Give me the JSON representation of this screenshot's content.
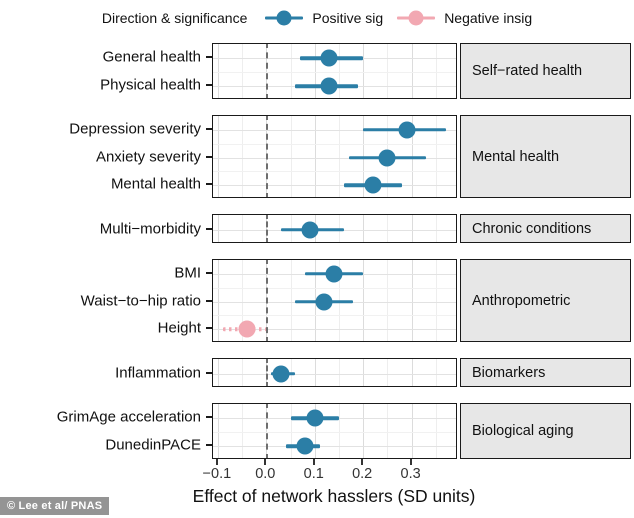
{
  "legend": {
    "title": "Direction & significance",
    "items": [
      {
        "label": "Positive sig",
        "color": "#2b7ea6",
        "ci_style": "solid"
      },
      {
        "label": "Negative insig",
        "color": "#f2a8b2",
        "ci_style": "dotted"
      }
    ]
  },
  "watermark": "© Lee et al/ PNAS",
  "colors": {
    "positive": "#2b7ea6",
    "negative_insig": "#f2a8b2",
    "strip_background": "#e7e7e7",
    "zero_line": "#6e6e6e",
    "panel_border": "#1a1a1a"
  },
  "chart_data": {
    "type": "forest",
    "title": "",
    "xlabel": "Effect of network hasslers (SD units)",
    "ylabel": "",
    "xlim": [
      -0.11,
      0.39
    ],
    "x_ticks": [
      -0.1,
      0.0,
      0.1,
      0.2,
      0.3
    ],
    "x_tick_labels": [
      "−0.1",
      "0.0",
      "0.1",
      "0.2",
      "0.3"
    ],
    "zero_line": 0.0,
    "grid": true,
    "legend_position": "top",
    "groups": [
      {
        "label": "Self−rated health",
        "rows": [
          {
            "label": "General health",
            "value": 0.13,
            "lower": 0.07,
            "upper": 0.2,
            "series": "Positive sig"
          },
          {
            "label": "Physical health",
            "value": 0.13,
            "lower": 0.06,
            "upper": 0.19,
            "series": "Positive sig"
          }
        ]
      },
      {
        "label": "Mental health",
        "rows": [
          {
            "label": "Depression severity",
            "value": 0.29,
            "lower": 0.2,
            "upper": 0.37,
            "series": "Positive sig"
          },
          {
            "label": "Anxiety severity",
            "value": 0.25,
            "lower": 0.17,
            "upper": 0.33,
            "series": "Positive sig"
          },
          {
            "label": "Mental health",
            "value": 0.22,
            "lower": 0.16,
            "upper": 0.28,
            "series": "Positive sig"
          }
        ]
      },
      {
        "label": "Chronic conditions",
        "rows": [
          {
            "label": "Multi−morbidity",
            "value": 0.09,
            "lower": 0.03,
            "upper": 0.16,
            "series": "Positive sig"
          }
        ]
      },
      {
        "label": "Anthropometric",
        "rows": [
          {
            "label": "BMI",
            "value": 0.14,
            "lower": 0.08,
            "upper": 0.2,
            "series": "Positive sig"
          },
          {
            "label": "Waist−to−hip ratio",
            "value": 0.12,
            "lower": 0.06,
            "upper": 0.18,
            "series": "Positive sig"
          },
          {
            "label": "Height",
            "value": -0.04,
            "lower": -0.09,
            "upper": 0.0,
            "series": "Negative insig"
          }
        ]
      },
      {
        "label": "Biomarkers",
        "rows": [
          {
            "label": "Inflammation",
            "value": 0.03,
            "lower": 0.01,
            "upper": 0.06,
            "series": "Positive sig"
          }
        ]
      },
      {
        "label": "Biological aging",
        "rows": [
          {
            "label": "GrimAge acceleration",
            "value": 0.1,
            "lower": 0.05,
            "upper": 0.15,
            "series": "Positive sig"
          },
          {
            "label": "DunedinPACE",
            "value": 0.08,
            "lower": 0.04,
            "upper": 0.11,
            "series": "Positive sig"
          }
        ]
      }
    ]
  }
}
